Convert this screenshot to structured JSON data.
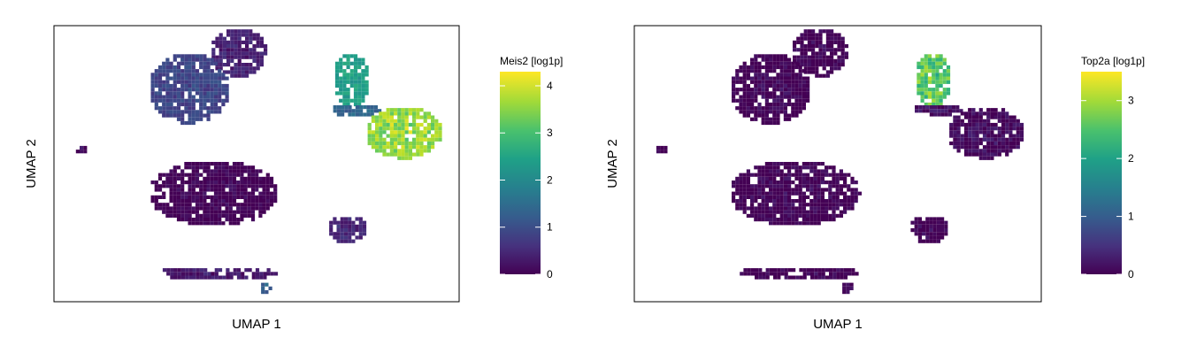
{
  "chart_data": [
    {
      "type": "scatter",
      "subtype": "hexbin-umap",
      "xlabel": "UMAP 1",
      "ylabel": "UMAP 2",
      "colorbar": {
        "label": "Meis2 [log1p]",
        "min": 0,
        "max": 4.3,
        "ticks": [
          0,
          1,
          2,
          3,
          4
        ],
        "colormap": "viridis"
      },
      "clusters": [
        {
          "name": "top-center",
          "value": 0.4,
          "high": false
        },
        {
          "name": "upper-left",
          "value": 0.9,
          "high": false
        },
        {
          "name": "left-dot",
          "value": 0.1,
          "high": false
        },
        {
          "name": "right-branch-top",
          "value": 2.4,
          "high": false
        },
        {
          "name": "right-branch-stem",
          "value": 1.4,
          "high": false
        },
        {
          "name": "right-blob",
          "value": 3.6,
          "high": true
        },
        {
          "name": "center-oval",
          "value": 0.0,
          "high": false
        },
        {
          "name": "lower-right-small",
          "value": 0.5,
          "high": false
        },
        {
          "name": "bottom-streak",
          "value": 0.3,
          "high": false
        },
        {
          "name": "bottom-streak-tip",
          "value": 1.3,
          "high": false
        }
      ]
    },
    {
      "type": "scatter",
      "subtype": "hexbin-umap",
      "xlabel": "UMAP 1",
      "ylabel": "UMAP 2",
      "colorbar": {
        "label": "Top2a [log1p]",
        "min": 0,
        "max": 3.5,
        "ticks": [
          0,
          1,
          2,
          3
        ],
        "colormap": "viridis"
      },
      "clusters": [
        {
          "name": "top-center",
          "value": 0.0,
          "high": false
        },
        {
          "name": "upper-left",
          "value": 0.0,
          "high": false
        },
        {
          "name": "left-dot",
          "value": 0.0,
          "high": false
        },
        {
          "name": "right-branch-top",
          "value": 2.6,
          "high": true
        },
        {
          "name": "right-branch-stem",
          "value": 0.1,
          "high": false
        },
        {
          "name": "right-blob",
          "value": 0.1,
          "high": false
        },
        {
          "name": "center-oval",
          "value": 0.0,
          "high": false
        },
        {
          "name": "lower-right-small",
          "value": 0.0,
          "high": false
        },
        {
          "name": "bottom-streak",
          "value": 0.0,
          "high": false
        },
        {
          "name": "bottom-streak-tip",
          "value": 0.0,
          "high": false
        }
      ]
    }
  ]
}
